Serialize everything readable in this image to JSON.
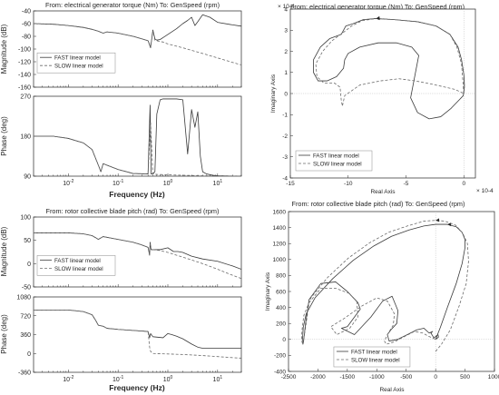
{
  "chart_data": [
    {
      "type": "line",
      "id": "bode_torque",
      "title": "From: electrical generator torque (Nm)  To: GenSpeed (rpm)",
      "xlabel": "Frequency  (Hz)",
      "xscale": "log",
      "xlim": [
        0.002,
        30
      ],
      "x_tick_labels": [
        "10-2",
        "10-1",
        "100",
        "101"
      ],
      "legend_position": "left",
      "subplots": [
        {
          "ylabel": "Magnitude (dB)",
          "ylim": [
            -160,
            -40
          ],
          "y_ticks": [
            -40,
            -60,
            -80,
            -100,
            -120,
            -140,
            -160
          ],
          "series": [
            {
              "name": "FAST linear model",
              "style": "solid",
              "x": [
                0.002,
                0.005,
                0.01,
                0.02,
                0.03,
                0.04,
                0.05,
                0.06,
                0.1,
                0.2,
                0.3,
                0.4,
                0.45,
                0.5,
                0.55,
                0.6,
                0.7,
                0.8,
                1.0,
                1.5,
                2,
                2.5,
                3,
                3.5,
                4,
                5,
                7,
                10,
                20,
                30
              ],
              "y": [
                -60,
                -61,
                -63,
                -66,
                -69,
                -72,
                -75,
                -73,
                -75,
                -80,
                -84,
                -87,
                -98,
                -70,
                -84,
                -86,
                -85,
                -82,
                -77,
                -68,
                -60,
                -55,
                -50,
                -63,
                -57,
                -46,
                -50,
                -58,
                -62,
                -64
              ]
            },
            {
              "name": "SLOW linear model",
              "style": "dashed",
              "x": [
                0.002,
                0.005,
                0.01,
                0.02,
                0.03,
                0.04,
                0.05,
                0.06,
                0.1,
                0.2,
                0.3,
                0.4,
                0.45,
                0.5,
                0.55,
                0.6,
                0.8,
                1,
                2,
                3,
                5,
                10,
                20,
                30
              ],
              "y": [
                -60,
                -61,
                -63,
                -66,
                -69,
                -72,
                -75,
                -73,
                -75,
                -80,
                -84,
                -87,
                -96,
                -72,
                -86,
                -87,
                -89,
                -92,
                -98,
                -102,
                -107,
                -114,
                -121,
                -125
              ]
            }
          ]
        },
        {
          "ylabel": "Phase (deg)",
          "ylim": [
            90,
            270
          ],
          "y_ticks": [
            90,
            180,
            270
          ],
          "series": [
            {
              "name": "FAST linear model",
              "style": "solid",
              "x": [
                0.002,
                0.005,
                0.01,
                0.02,
                0.03,
                0.04,
                0.045,
                0.05,
                0.1,
                0.2,
                0.4,
                0.44,
                0.46,
                0.5,
                0.55,
                0.6,
                0.7,
                0.8,
                0.9,
                1.0,
                1.2,
                1.5,
                2,
                2.5,
                3,
                3.5,
                4,
                4.5,
                5,
                6,
                8,
                10,
                20,
                30
              ],
              "y": [
                180,
                180,
                175,
                165,
                150,
                115,
                100,
                118,
                105,
                96,
                95,
                250,
                95,
                95,
                100,
                230,
                262,
                264,
                264,
                264,
                264,
                264,
                262,
                140,
                240,
                200,
                235,
                135,
                100,
                95,
                92,
                91,
                90,
                90
              ]
            },
            {
              "name": "SLOW linear model",
              "style": "dashed",
              "x": [
                0.002,
                0.005,
                0.01,
                0.02,
                0.03,
                0.04,
                0.045,
                0.05,
                0.1,
                0.2,
                0.4,
                0.45,
                0.5,
                0.6,
                1,
                2,
                5,
                10,
                30
              ],
              "y": [
                180,
                180,
                175,
                165,
                150,
                115,
                100,
                118,
                105,
                96,
                95,
                210,
                95,
                94,
                93,
                92,
                91,
                90,
                90
              ]
            }
          ]
        }
      ]
    },
    {
      "type": "line",
      "id": "nyquist_torque",
      "title": "From: electrical generator torque (Nm)  To: GenSpeed (rpm)",
      "xlabel": "Real Axis",
      "ylabel": "Imaginary Axis",
      "x_exponent": "× 10-4",
      "y_exponent": "× 10-4",
      "xlim": [
        -15,
        1
      ],
      "ylim": [
        -4,
        4
      ],
      "x_ticks": [
        -15,
        -10,
        -5,
        0
      ],
      "y_ticks": [
        -4,
        -3,
        -2,
        -1,
        0,
        1,
        2,
        3,
        4
      ],
      "legend_position": "bottom-left",
      "series": [
        {
          "name": "FAST linear model",
          "style": "solid",
          "x": [
            0.0,
            0.05,
            0.0,
            -0.2,
            -0.5,
            -1.2,
            -2.4,
            -4.0,
            -6.0,
            -7.6,
            -8.7,
            -9.6,
            -10.2,
            -10.6,
            -11.6,
            -12.4,
            -13.0,
            -13.0,
            -12.6,
            -11.8,
            -11.0,
            -10.4,
            -10.3,
            -10.0,
            -9.0,
            -7.4,
            -5.8,
            -4.5,
            -3.9,
            -4.6,
            -4.0,
            -3.0,
            -2.0,
            -1.1,
            -0.4,
            -0.05,
            0.05,
            0.0
          ],
          "y": [
            0.0,
            0.4,
            0.9,
            1.6,
            2.2,
            2.8,
            3.2,
            3.4,
            3.5,
            3.55,
            3.5,
            3.3,
            3.2,
            2.8,
            2.6,
            2.2,
            1.6,
            1.0,
            0.6,
            0.6,
            0.8,
            1.2,
            1.6,
            1.9,
            2.2,
            2.4,
            2.4,
            2.2,
            1.8,
            -0.2,
            -0.9,
            -1.2,
            -1.1,
            -0.7,
            -0.3,
            -0.1,
            0.3,
            0.9
          ]
        },
        {
          "name": "SLOW linear model",
          "style": "dashed",
          "x": [
            0.0,
            -0.2,
            -0.6,
            -1.2,
            -2.4,
            -4.0,
            -6.0,
            -7.6,
            -8.8,
            -9.7,
            -10.4,
            -11.4,
            -12.2,
            -12.8,
            -12.7,
            -12.1,
            -11.2,
            -10.7,
            -10.6,
            -10.5,
            -10.3,
            -9.0,
            -7.2,
            -5.6,
            -4.2,
            -2.8,
            -1.6,
            -0.8,
            -0.3,
            0.0
          ],
          "y": [
            0.0,
            1.4,
            2.2,
            2.8,
            3.2,
            3.4,
            3.5,
            3.55,
            3.45,
            3.2,
            2.9,
            2.5,
            2.0,
            1.4,
            0.8,
            0.5,
            0.5,
            0.3,
            -0.3,
            -0.6,
            -0.1,
            0.4,
            0.6,
            0.7,
            0.6,
            0.45,
            0.3,
            0.2,
            0.08,
            0.0
          ]
        }
      ]
    },
    {
      "type": "line",
      "id": "bode_pitch",
      "title": "From: rotor collective blade pitch (rad)  To: GenSpeed (rpm)",
      "xlabel": "Frequency  (Hz)",
      "xscale": "log",
      "xlim": [
        0.002,
        30
      ],
      "x_tick_labels": [
        "10-2",
        "10-1",
        "100",
        "101"
      ],
      "legend_position": "left",
      "subplots": [
        {
          "ylabel": "Magnitude (dB)",
          "ylim": [
            -50,
            100
          ],
          "y_ticks": [
            100,
            50,
            0,
            -50
          ],
          "series": [
            {
              "name": "FAST linear model",
              "style": "solid",
              "x": [
                0.002,
                0.01,
                0.02,
                0.03,
                0.035,
                0.04,
                0.05,
                0.1,
                0.2,
                0.3,
                0.4,
                0.43,
                0.44,
                0.46,
                0.5,
                0.7,
                1.0,
                1.3,
                1.6,
                2,
                3,
                5,
                10,
                20,
                30
              ],
              "y": [
                66,
                66,
                64,
                60,
                56,
                52,
                58,
                52,
                46,
                40,
                35,
                18,
                46,
                30,
                30,
                30,
                34,
                26,
                26,
                24,
                16,
                10,
                5,
                -5,
                -12
              ]
            },
            {
              "name": "SLOW linear model",
              "style": "dashed",
              "x": [
                0.002,
                0.01,
                0.02,
                0.03,
                0.035,
                0.04,
                0.05,
                0.1,
                0.2,
                0.3,
                0.4,
                0.43,
                0.44,
                0.46,
                0.5,
                0.7,
                1.0,
                1.5,
                2,
                3,
                5,
                10,
                20,
                30
              ],
              "y": [
                66,
                66,
                64,
                60,
                56,
                52,
                58,
                52,
                46,
                40,
                35,
                22,
                42,
                30,
                30,
                28,
                24,
                18,
                14,
                8,
                0,
                -12,
                -25,
                -32
              ]
            }
          ]
        },
        {
          "ylabel": "Phase (deg)",
          "ylim": [
            -360,
            1080
          ],
          "y_ticks": [
            1080,
            720,
            360,
            0,
            -360
          ],
          "series": [
            {
              "name": "FAST linear model",
              "style": "solid",
              "x": [
                0.002,
                0.01,
                0.02,
                0.03,
                0.035,
                0.04,
                0.05,
                0.06,
                0.1,
                0.2,
                0.4,
                0.43,
                0.45,
                0.5,
                0.8,
                1.0,
                1.2,
                1.5,
                2,
                3,
                4,
                5,
                10,
                20,
                30
              ],
              "y": [
                830,
                830,
                800,
                740,
                640,
                540,
                520,
                480,
                460,
                440,
                420,
                300,
                380,
                320,
                300,
                380,
                360,
                330,
                280,
                180,
                120,
                100,
                100,
                100,
                100
              ]
            },
            {
              "name": "SLOW linear model",
              "style": "dashed",
              "x": [
                0.002,
                0.01,
                0.02,
                0.03,
                0.035,
                0.04,
                0.05,
                0.06,
                0.1,
                0.2,
                0.4,
                0.43,
                0.45,
                0.5,
                1.0,
                2,
                5,
                10,
                20,
                30
              ],
              "y": [
                830,
                830,
                800,
                740,
                640,
                540,
                520,
                480,
                460,
                440,
                420,
                120,
                40,
                0,
                -10,
                -20,
                -40,
                -60,
                -80,
                -90
              ]
            }
          ]
        }
      ]
    },
    {
      "type": "line",
      "id": "nyquist_pitch",
      "title": "From: rotor collective blade pitch (rad)  To: GenSpeed (rpm)",
      "xlabel": "Real Axis",
      "ylabel": "Imaginary Axis",
      "xlim": [
        -2500,
        1000
      ],
      "ylim": [
        -400,
        1600
      ],
      "x_ticks": [
        -2500,
        -2000,
        -1500,
        -1000,
        -500,
        0,
        500,
        1000
      ],
      "y_ticks": [
        -400,
        -200,
        0,
        200,
        400,
        600,
        800,
        1000,
        1200,
        1400,
        1600
      ],
      "legend_position": "bottom-center",
      "series": [
        {
          "name": "FAST linear model",
          "style": "solid",
          "x": [
            0,
            80,
            200,
            350,
            450,
            500,
            500,
            450,
            350,
            200,
            0,
            -200,
            -450,
            -750,
            -1050,
            -1400,
            -1750,
            -2050,
            -2200,
            -2250,
            -2260,
            -2255,
            -2245,
            -2210,
            -2150,
            -1950,
            -1700,
            -1500,
            -1320,
            -1280,
            -1500,
            -1600,
            -1380,
            -1100,
            -900,
            -740,
            -640,
            -660,
            -760,
            -820,
            -790,
            -650,
            -480,
            -320,
            -200,
            -110,
            -50,
            -80,
            -30,
            40,
            50,
            0
          ],
          "y": [
            0,
            150,
            400,
            700,
            950,
            1150,
            1250,
            1340,
            1410,
            1440,
            1440,
            1420,
            1370,
            1290,
            1170,
            990,
            760,
            520,
            320,
            150,
            20,
            -60,
            -30,
            200,
            500,
            700,
            720,
            600,
            460,
            380,
            160,
            140,
            60,
            280,
            480,
            540,
            360,
            200,
            120,
            60,
            -20,
            0,
            60,
            120,
            140,
            80,
            100,
            80,
            20,
            60,
            30,
            0
          ]
        },
        {
          "name": "SLOW linear model",
          "style": "dashed",
          "x": [
            0,
            100,
            250,
            400,
            520,
            560,
            540,
            460,
            340,
            160,
            0,
            -200,
            -480,
            -800,
            -1120,
            -1480,
            -1830,
            -2120,
            -2240,
            -2270,
            -2280,
            -2260,
            -2220,
            -2150,
            -1950,
            -1700,
            -1480,
            -1340,
            -1320,
            -1460,
            -1680,
            -1780,
            -1560,
            -1250,
            -1000,
            -820,
            -700,
            -720,
            -820,
            -870,
            -840,
            -700,
            -520,
            -360,
            -220,
            -120,
            -60,
            0
          ],
          "y": [
            -150,
            -60,
            120,
            420,
            700,
            980,
            1200,
            1330,
            1430,
            1480,
            1490,
            1480,
            1420,
            1340,
            1210,
            1020,
            780,
            520,
            300,
            120,
            0,
            -60,
            100,
            460,
            640,
            640,
            580,
            480,
            280,
            140,
            60,
            160,
            260,
            420,
            520,
            480,
            320,
            180,
            60,
            -20,
            -60,
            -30,
            40,
            100,
            80,
            40,
            20,
            0
          ]
        }
      ]
    }
  ]
}
